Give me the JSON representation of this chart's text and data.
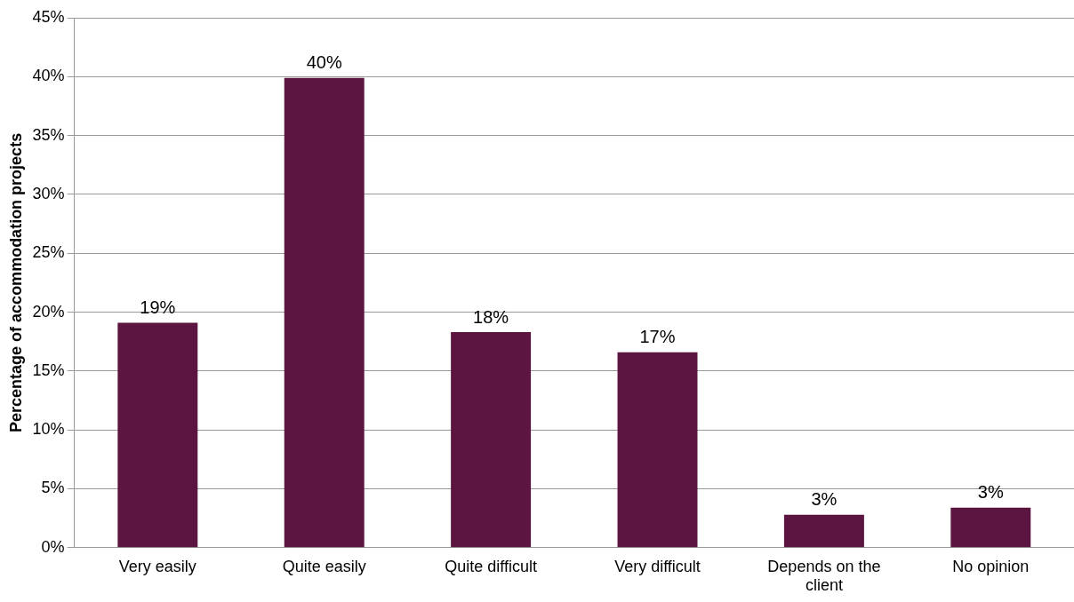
{
  "chart_data": {
    "type": "bar",
    "ylabel": "Percentage of accommodation projects",
    "categories": [
      "Very easily",
      "Quite easily",
      "Quite difficult",
      "Very difficult",
      "Depends on the client",
      "No opinion"
    ],
    "values": [
      19.1,
      39.9,
      18.3,
      16.6,
      2.8,
      3.4
    ],
    "value_labels": [
      "19%",
      "40%",
      "18%",
      "17%",
      "3%",
      "3%"
    ],
    "color": "#5c1440",
    "ylim": [
      0,
      45
    ],
    "yticks": [
      {
        "value": 0,
        "label": "0%"
      },
      {
        "value": 5,
        "label": "5%"
      },
      {
        "value": 10,
        "label": "10%"
      },
      {
        "value": 15,
        "label": "15%"
      },
      {
        "value": 20,
        "label": "20%"
      },
      {
        "value": 25,
        "label": "25%"
      },
      {
        "value": 30,
        "label": "30%"
      },
      {
        "value": 35,
        "label": "35%"
      },
      {
        "value": 40,
        "label": "40%"
      },
      {
        "value": 45,
        "label": "45%"
      }
    ],
    "grid": "y"
  }
}
